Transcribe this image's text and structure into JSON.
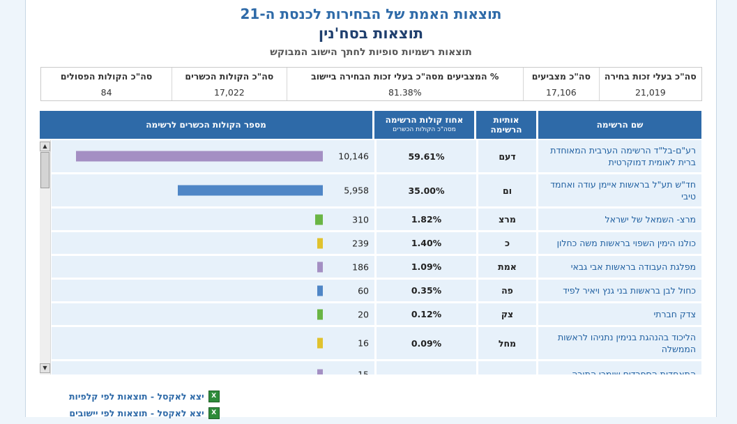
{
  "header": {
    "title": "תוצאות האמת של הבחירות לכנסת ה-21",
    "city_title": "תוצאות בסח'נין",
    "subtitle": "תוצאות רשמיות סופיות לחתך הישוב המבוקש"
  },
  "stats": [
    {
      "label": "סה\"כ בעלי זכות בחירה",
      "value": "21,019"
    },
    {
      "label": "סה\"כ מצביעים",
      "value": "17,106"
    },
    {
      "label": "% המצביעים מסה\"כ בעלי זכות הבחירה ביישוב",
      "value": "81.38%"
    },
    {
      "label": "סה\"כ הקולות הכשרים",
      "value": "17,022"
    },
    {
      "label": "סה\"כ הקולות הפסולים",
      "value": "84"
    }
  ],
  "table": {
    "headers": {
      "name": "שם הרשימה",
      "letters": "אותיות הרשימה",
      "percent": "אחוז קולות הרשימה",
      "percent_sub": "מסה\"כ הקולות הכשרים",
      "votes": "מספר הקולות הכשרים לרשימה"
    },
    "rows": [
      {
        "name": "רע\"ם-בל\"ד הרשימה הערבית המאוחדת ברית לאומית דמוקרטית",
        "letters": "דעם",
        "percent": "59.61%",
        "votes": "10,146",
        "votes_num": 10146,
        "color": "#a48fc3"
      },
      {
        "name": "חד\"ש תע\"ל בראשות איימן עודה ואחמד טיבי",
        "letters": "ום",
        "percent": "35.00%",
        "votes": "5,958",
        "votes_num": 5958,
        "color": "#4f86c6"
      },
      {
        "name": "מרצ- השמאל של ישראל",
        "letters": "מרצ",
        "percent": "1.82%",
        "votes": "310",
        "votes_num": 310,
        "color": "#6ab544"
      },
      {
        "name": "כולנו הימין השפוי בראשות משה כחלון",
        "letters": "כ",
        "percent": "1.40%",
        "votes": "239",
        "votes_num": 239,
        "color": "#e0c22e"
      },
      {
        "name": "מפלגת העבודה בראשות אבי גבאי",
        "letters": "אמת",
        "percent": "1.09%",
        "votes": "186",
        "votes_num": 186,
        "color": "#a48fc3"
      },
      {
        "name": "כחול לבן בראשות בני גנץ ויאיר לפיד",
        "letters": "פה",
        "percent": "0.35%",
        "votes": "60",
        "votes_num": 60,
        "color": "#4f86c6"
      },
      {
        "name": "צדק חברתי",
        "letters": "צק",
        "percent": "0.12%",
        "votes": "20",
        "votes_num": 20,
        "color": "#6ab544"
      },
      {
        "name": "הליכוד בהנהגת בנימין נתניהו לראשות הממשלה",
        "letters": "מחל",
        "percent": "0.09%",
        "votes": "16",
        "votes_num": 16,
        "color": "#e0c22e"
      },
      {
        "name": "התאחדות הספרדים שומרי התורה",
        "letters": "",
        "percent": "",
        "votes": "15",
        "votes_num": 15,
        "color": "#a48fc3"
      }
    ]
  },
  "links": [
    {
      "label": "יצא לאקסל - תוצאות לפי קלפיות",
      "icon": "excel-icon"
    },
    {
      "label": "יצא לאקסל - תוצאות לפי יישובים",
      "icon": "excel-icon"
    }
  ]
}
